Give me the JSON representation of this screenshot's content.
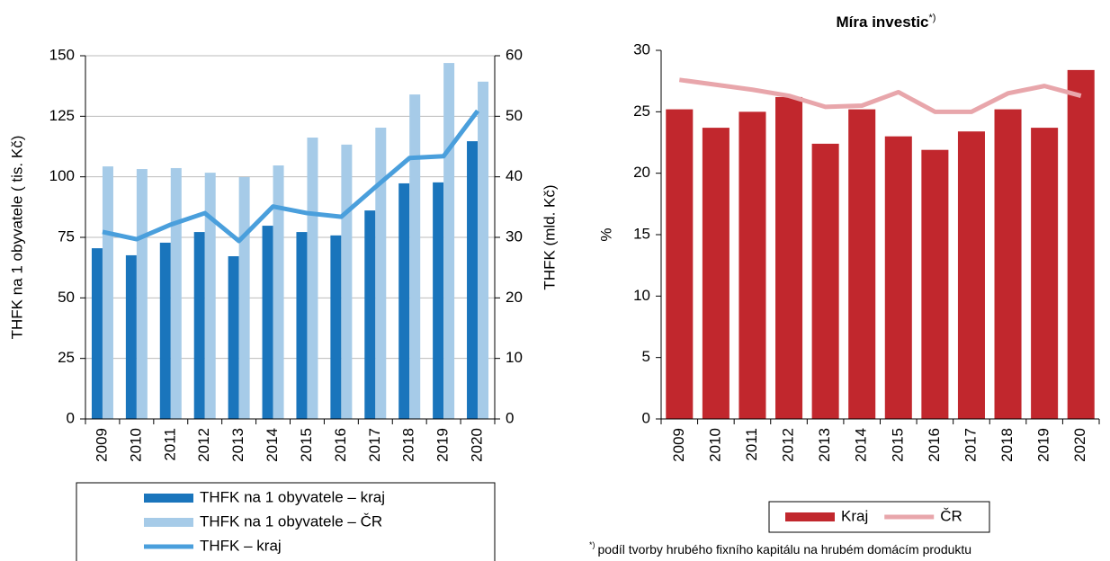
{
  "chart_data": [
    {
      "type": "bar",
      "categories": [
        "2009",
        "2010",
        "2011",
        "2012",
        "2013",
        "2014",
        "2015",
        "2016",
        "2017",
        "2018",
        "2019",
        "2020"
      ],
      "y_label": "THFK na 1 obyvatele ( tis. Kč)",
      "y2_label": "THFK (mld. Kč)",
      "ylim": [
        0,
        150
      ],
      "yticks": [
        0,
        25,
        50,
        75,
        100,
        125,
        150
      ],
      "y2lim": [
        0,
        60
      ],
      "y2ticks": [
        0,
        10,
        20,
        30,
        40,
        50,
        60
      ],
      "grid": true,
      "legend": "bottom",
      "series": [
        {
          "name": "THFK na 1 obyvatele – kraj",
          "type": "bar",
          "color": "#1a75bc",
          "values": [
            70.5,
            67.6,
            72.8,
            77.2,
            67.2,
            79.8,
            77.2,
            75.8,
            86.1,
            97.3,
            97.7,
            114.7
          ]
        },
        {
          "name": "THFK na 1 obyvatele – ČR",
          "type": "bar",
          "color": "#a6cbe8",
          "values": [
            104.3,
            103.2,
            103.6,
            101.7,
            99.9,
            104.7,
            116.2,
            113.3,
            120.3,
            134,
            147,
            139.3
          ]
        },
        {
          "name": "THFK – kraj",
          "type": "line",
          "axis": "y2",
          "color": "#4a9fdc",
          "values": [
            30.9,
            29.7,
            32.1,
            34,
            29.4,
            35.1,
            34,
            33.4,
            38.3,
            43.1,
            43.4,
            50.9
          ]
        }
      ]
    },
    {
      "type": "bar",
      "title": "Míra investic",
      "title_superscript": "*)",
      "categories": [
        "2009",
        "2010",
        "2011",
        "2012",
        "2013",
        "2014",
        "2015",
        "2016",
        "2017",
        "2018",
        "2019",
        "2020"
      ],
      "y_label": "%",
      "ylim": [
        0,
        30
      ],
      "yticks": [
        0,
        5,
        10,
        15,
        20,
        25,
        30
      ],
      "grid": false,
      "legend": "bottom",
      "footnote_marker": "*)",
      "footnote": "podíl tvorby hrubého fixního kapitálu na hrubém domácím produktu",
      "series": [
        {
          "name": "Kraj",
          "type": "bar",
          "color": "#c1272d",
          "values": [
            25.2,
            23.7,
            25,
            26.2,
            22.4,
            25.2,
            23,
            21.9,
            23.4,
            25.2,
            23.7,
            28.4
          ]
        },
        {
          "name": "ČR",
          "type": "line",
          "color": "#e8a6ab",
          "values": [
            27.6,
            27.2,
            26.8,
            26.3,
            25.4,
            25.5,
            26.6,
            25,
            25,
            26.5,
            27.1,
            26.3
          ]
        }
      ]
    }
  ]
}
